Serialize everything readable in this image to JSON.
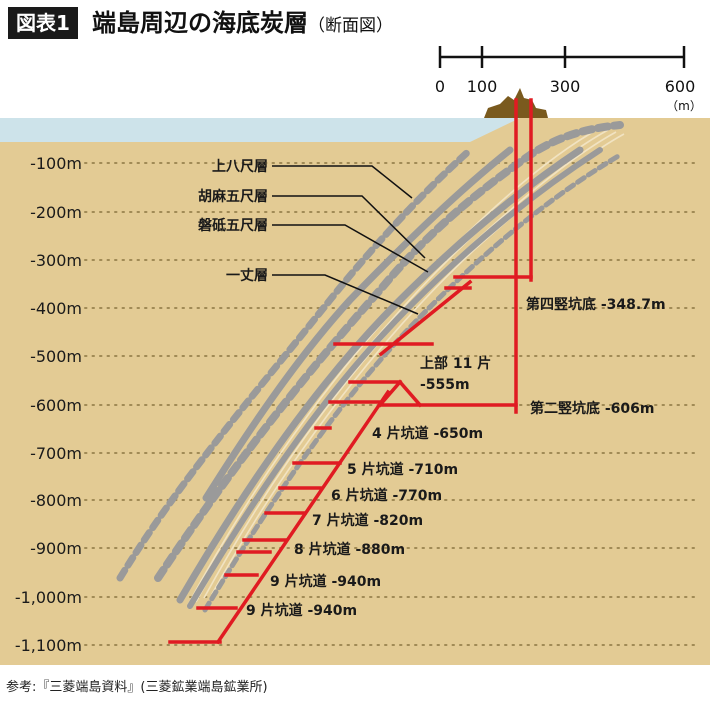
{
  "header": {
    "badge": "図表1",
    "title": "端島周辺の海底炭層",
    "subtitle": "（断面図）"
  },
  "scale": {
    "ticks": [
      "0",
      "100",
      "300",
      "600"
    ],
    "unit": "（m）"
  },
  "depth_labels": [
    "-100m",
    "-200m",
    "-300m",
    "-400m",
    "-500m",
    "-600m",
    "-700m",
    "-800m",
    "-900m",
    "-1,000m",
    "-1,100m"
  ],
  "seams": [
    "上八尺層",
    "胡麻五尺層",
    "磐砥五尺層",
    "一丈層"
  ],
  "shaft_labels": [
    "第四竪坑底 -348.7m",
    "第二竪坑底 -606m"
  ],
  "upper_label": {
    "line1": "上部 11 片",
    "line2": "-555m"
  },
  "level_labels": [
    "4 片坑道 -650m",
    "5 片坑道 -710m",
    "6 片坑道 -770m",
    "7 片坑道 -820m",
    "8 片坑道 -880m",
    "9 片坑道 -940m",
    "9 片坑道 -940m"
  ],
  "footer": "参考:『三菱端島資料』(三菱鉱業端島鉱業所)",
  "colors": {
    "sea": "#cde3ea",
    "ground": "#e3cb94",
    "seam_gray": "#9a9a9a",
    "tunnel_red": "#e01b22",
    "island": "#7a5a1e"
  }
}
